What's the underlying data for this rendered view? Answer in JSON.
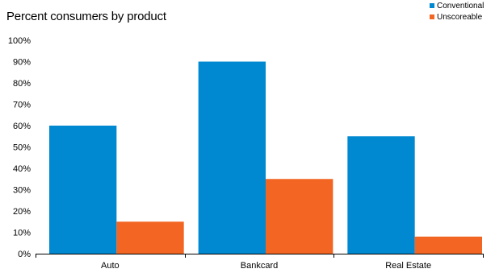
{
  "chart_data": {
    "type": "bar",
    "title": "Percent consumers by product",
    "xlabel": "",
    "ylabel": "",
    "categories": [
      "Auto",
      "Bankcard",
      "Real Estate"
    ],
    "series": [
      {
        "name": "Conventional",
        "color": "#0088d1",
        "values": [
          60,
          90,
          55
        ]
      },
      {
        "name": "Unscoreable",
        "color": "#f26522",
        "values": [
          15,
          35,
          8
        ]
      }
    ],
    "ylim": [
      0,
      100
    ],
    "yticks": [
      "0%",
      "10%",
      "20%",
      "30%",
      "40%",
      "50%",
      "60%",
      "70%",
      "80%",
      "90%",
      "100%"
    ],
    "grid": false,
    "legend_position": "top-right"
  }
}
